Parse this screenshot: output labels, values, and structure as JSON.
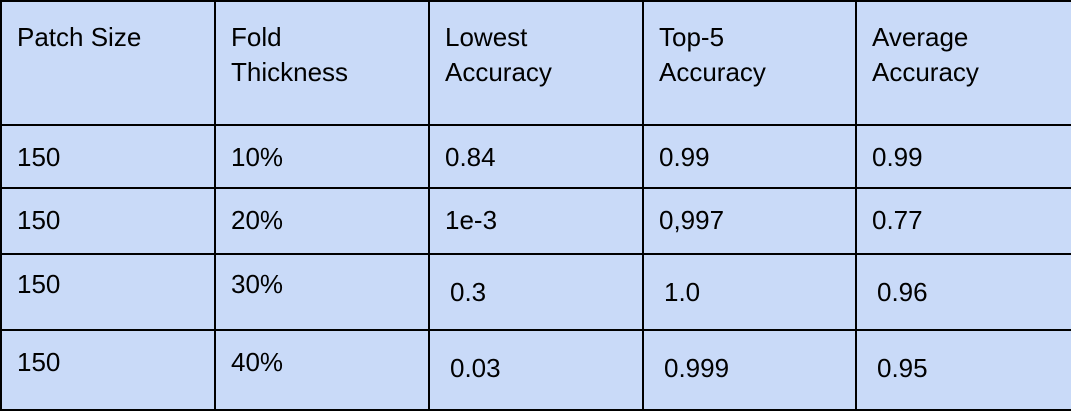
{
  "table": {
    "headers": [
      [
        "Patch Size"
      ],
      [
        "Fold",
        "Thickness"
      ],
      [
        "Lowest",
        "Accuracy"
      ],
      [
        "Top-5",
        "Accuracy"
      ],
      [
        "Average",
        "Accuracy"
      ]
    ],
    "rows": [
      [
        "150",
        "10%",
        "0.84",
        "0.99",
        "0.99"
      ],
      [
        "150",
        "20%",
        "1e-3",
        "0,997",
        "0.77"
      ],
      [
        "150",
        "30%",
        "0.3",
        "1.0",
        "0.96"
      ],
      [
        "150",
        "40%",
        "0.03",
        "0.999",
        "0.95"
      ]
    ]
  },
  "colors": {
    "cell_background": "#c9daf8",
    "border": "#000000",
    "text": "#000000"
  }
}
